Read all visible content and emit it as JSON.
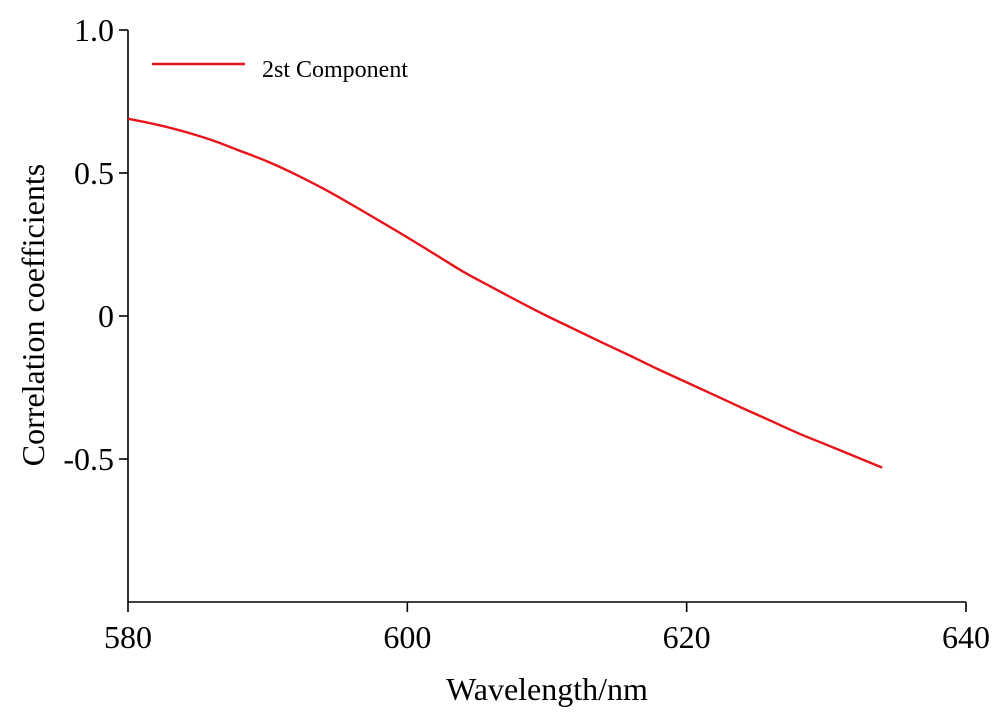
{
  "chart_data": {
    "type": "line",
    "title": "",
    "xlabel": "Wavelength/nm",
    "ylabel": "Correlation coefficients",
    "xlim": [
      580,
      640
    ],
    "ylim": [
      -1.0,
      1.0
    ],
    "x_ticks": [
      580,
      600,
      620,
      640
    ],
    "x_tick_labels": [
      "580",
      "600",
      "620",
      "640"
    ],
    "y_ticks": [
      1.0,
      0.5,
      0,
      -0.5
    ],
    "y_tick_labels": [
      "1.0",
      "0.5",
      "0",
      "-0.5"
    ],
    "grid": false,
    "legend": {
      "placement": "top-left"
    },
    "series": [
      {
        "name": "2st Component",
        "color": "#e8141b",
        "x": [
          580,
          582,
          584,
          586,
          588,
          590,
          592,
          594,
          596,
          598,
          600,
          602,
          604,
          606,
          608,
          610,
          612,
          614,
          616,
          618,
          620,
          622,
          624,
          626,
          628,
          630,
          632,
          634
        ],
        "y": [
          0.69,
          0.67,
          0.645,
          0.615,
          0.578,
          0.54,
          0.495,
          0.445,
          0.39,
          0.333,
          0.275,
          0.215,
          0.155,
          0.102,
          0.05,
          0.0,
          -0.047,
          -0.094,
          -0.14,
          -0.187,
          -0.232,
          -0.277,
          -0.322,
          -0.366,
          -0.41,
          -0.45,
          -0.49,
          -0.53
        ]
      }
    ]
  }
}
